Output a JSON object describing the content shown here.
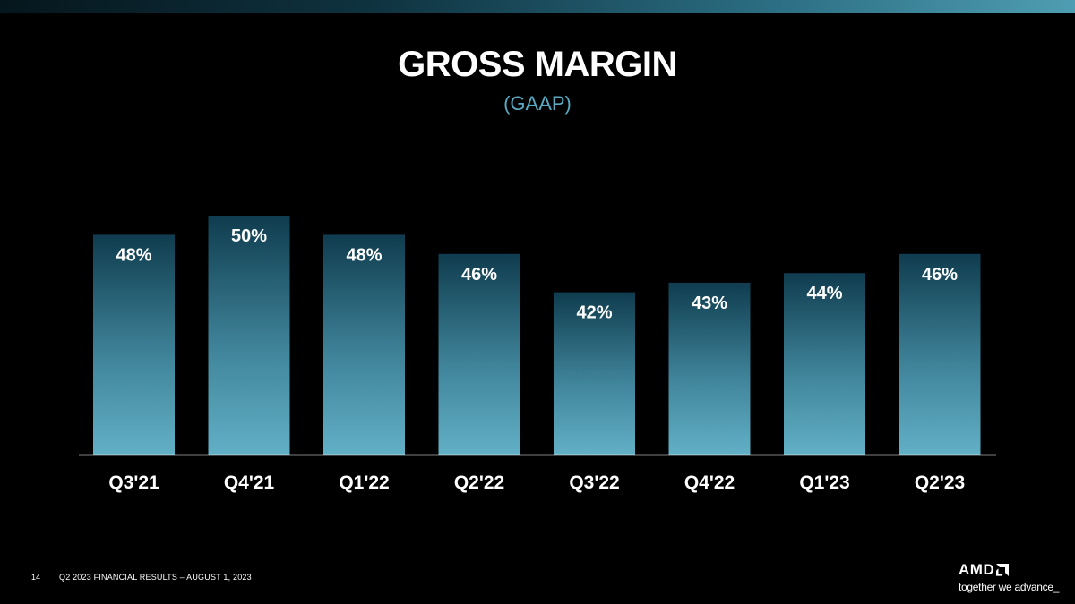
{
  "header": {
    "title": "GROSS MARGIN",
    "subtitle": "(GAAP)"
  },
  "chart_data": {
    "type": "bar",
    "categories": [
      "Q3'21",
      "Q4'21",
      "Q1'22",
      "Q2'22",
      "Q3'22",
      "Q4'22",
      "Q1'23",
      "Q2'23"
    ],
    "values": [
      48,
      50,
      48,
      46,
      42,
      43,
      44,
      46
    ],
    "value_labels": [
      "48%",
      "50%",
      "48%",
      "46%",
      "42%",
      "43%",
      "44%",
      "46%"
    ],
    "unit": "%",
    "grid": false,
    "legend": "none",
    "colors": {
      "bar_top": "#0f3c4e",
      "bar_bottom": "#62b0c6",
      "axis": "#ffffff"
    }
  },
  "footer": {
    "page_number": "14",
    "text": "Q2 2023 FINANCIAL RESULTS – AUGUST 1, 2023"
  },
  "logo": {
    "wordmark": "AMD",
    "tagline": "together we advance_"
  }
}
